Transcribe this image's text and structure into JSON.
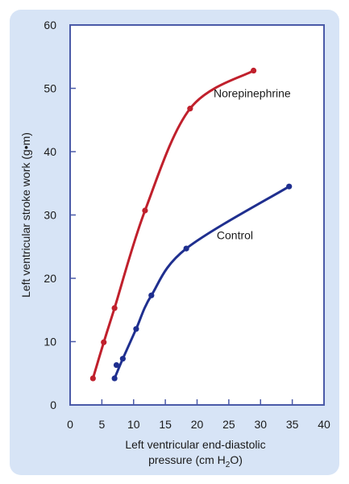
{
  "chart_data": {
    "type": "line",
    "xlabel_line1": "Left ventricular end-diastolic",
    "xlabel_line2_pre": "pressure (cm H",
    "xlabel_line2_sub": "2",
    "xlabel_line2_post": "O)",
    "ylabel": "Left ventricular stroke work (g•m)",
    "xlim": [
      0,
      40
    ],
    "ylim": [
      0,
      60
    ],
    "x_ticks": [
      0,
      5,
      10,
      15,
      20,
      25,
      30,
      35,
      40
    ],
    "y_ticks": [
      0,
      10,
      20,
      30,
      40,
      50,
      60
    ],
    "grid": false,
    "series": [
      {
        "name": "Norepinephrine",
        "color": "#c0202c",
        "points": [
          {
            "x": 3.6,
            "y": 4.2
          },
          {
            "x": 5.3,
            "y": 9.9
          },
          {
            "x": 7.0,
            "y": 15.3
          },
          {
            "x": 11.8,
            "y": 30.7
          },
          {
            "x": 18.9,
            "y": 46.8
          },
          {
            "x": 28.9,
            "y": 52.8
          }
        ]
      },
      {
        "name": "Control",
        "color": "#1f2f8f",
        "points": [
          {
            "x": 7.0,
            "y": 4.2
          },
          {
            "x": 7.3,
            "y": 6.3
          },
          {
            "x": 8.3,
            "y": 7.3
          },
          {
            "x": 10.4,
            "y": 12.0
          },
          {
            "x": 12.8,
            "y": 17.3
          },
          {
            "x": 18.3,
            "y": 24.7
          },
          {
            "x": 34.5,
            "y": 34.5
          }
        ]
      }
    ]
  }
}
